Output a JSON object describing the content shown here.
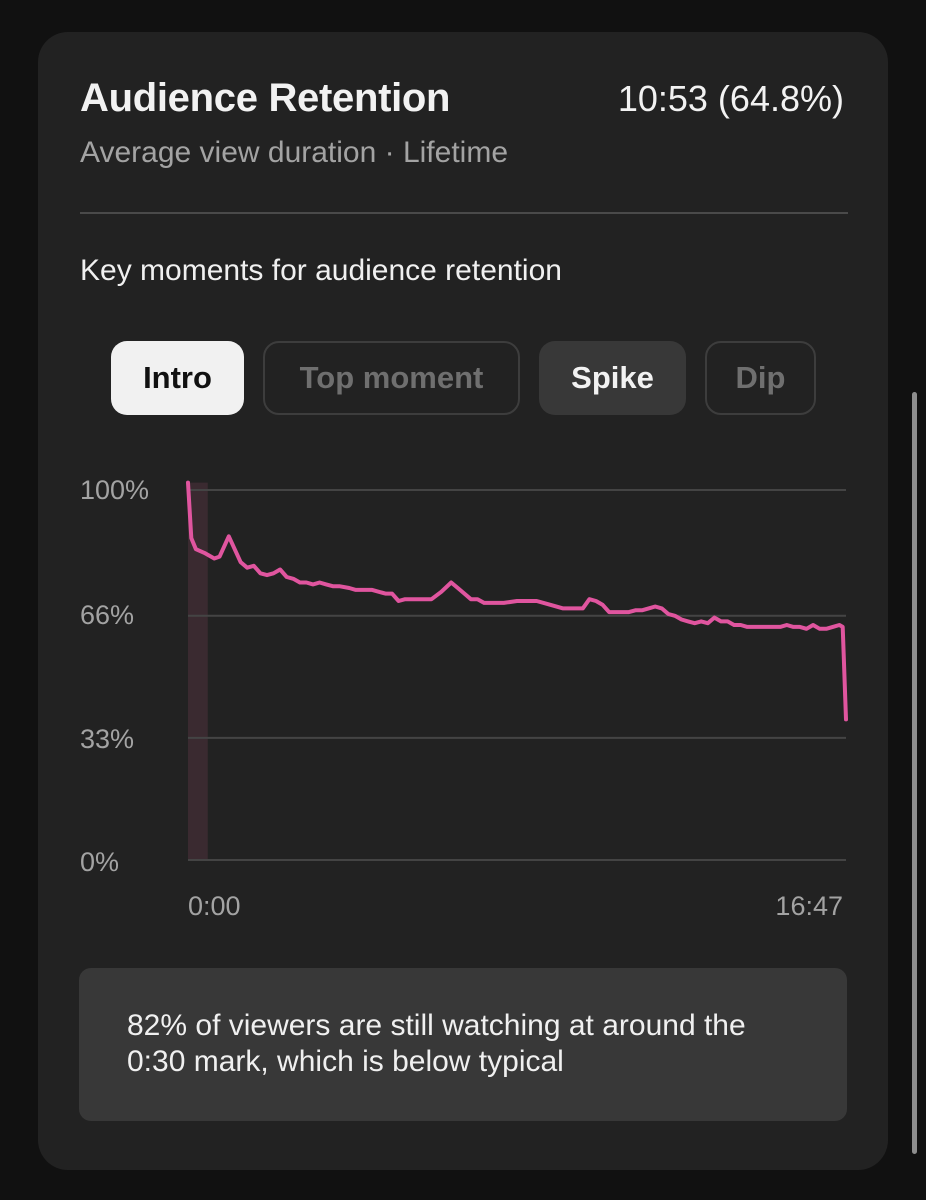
{
  "card": {
    "title": "Audience Retention",
    "summary_value": "10:53 (64.8%)",
    "subtitle": "Average view duration · Lifetime"
  },
  "key_moments": {
    "heading": "Key moments for audience retention",
    "chips": [
      {
        "label": "Intro",
        "state": "selected"
      },
      {
        "label": "Top moment",
        "state": "disabled"
      },
      {
        "label": "Spike",
        "state": "default"
      },
      {
        "label": "Dip",
        "state": "disabled"
      }
    ]
  },
  "chart_data": {
    "type": "line",
    "y_ticks": [
      "100%",
      "66%",
      "33%",
      "0%"
    ],
    "ylim": [
      0,
      100
    ],
    "x_tick_labels": [
      "0:00",
      "16:47"
    ],
    "x_unit": "fraction of video length",
    "highlight": {
      "label": "Intro",
      "x_range": [
        0,
        0.03
      ]
    },
    "line_color": "#e0559f",
    "highlight_color": "#3a2a30",
    "grid": true,
    "series": [
      {
        "values": [
          [
            0.0,
            102
          ],
          [
            0.005,
            87
          ],
          [
            0.012,
            84
          ],
          [
            0.025,
            83
          ],
          [
            0.04,
            81.5
          ],
          [
            0.048,
            82
          ],
          [
            0.062,
            87.5
          ],
          [
            0.08,
            80.5
          ],
          [
            0.09,
            79
          ],
          [
            0.1,
            79.5
          ],
          [
            0.11,
            77.5
          ],
          [
            0.12,
            77
          ],
          [
            0.13,
            77.5
          ],
          [
            0.14,
            78.5
          ],
          [
            0.15,
            76.5
          ],
          [
            0.16,
            76
          ],
          [
            0.17,
            75
          ],
          [
            0.18,
            75
          ],
          [
            0.19,
            74.5
          ],
          [
            0.2,
            75
          ],
          [
            0.21,
            74.5
          ],
          [
            0.22,
            74
          ],
          [
            0.23,
            74
          ],
          [
            0.245,
            73.5
          ],
          [
            0.255,
            73
          ],
          [
            0.27,
            73
          ],
          [
            0.28,
            73
          ],
          [
            0.3,
            72
          ],
          [
            0.31,
            72
          ],
          [
            0.32,
            70
          ],
          [
            0.33,
            70.5
          ],
          [
            0.34,
            70.5
          ],
          [
            0.355,
            70.5
          ],
          [
            0.37,
            70.5
          ],
          [
            0.385,
            72.5
          ],
          [
            0.4,
            75
          ],
          [
            0.41,
            73.5
          ],
          [
            0.42,
            72
          ],
          [
            0.43,
            70.5
          ],
          [
            0.44,
            70.5
          ],
          [
            0.45,
            69.5
          ],
          [
            0.46,
            69.5
          ],
          [
            0.48,
            69.5
          ],
          [
            0.5,
            70
          ],
          [
            0.52,
            70
          ],
          [
            0.53,
            70
          ],
          [
            0.55,
            69
          ],
          [
            0.57,
            68
          ],
          [
            0.59,
            68
          ],
          [
            0.6,
            68
          ],
          [
            0.61,
            70.5
          ],
          [
            0.62,
            70
          ],
          [
            0.63,
            69
          ],
          [
            0.64,
            67
          ],
          [
            0.66,
            67
          ],
          [
            0.67,
            67
          ],
          [
            0.68,
            67.5
          ],
          [
            0.69,
            67.5
          ],
          [
            0.7,
            68
          ],
          [
            0.71,
            68.5
          ],
          [
            0.72,
            68
          ],
          [
            0.73,
            66.5
          ],
          [
            0.74,
            66
          ],
          [
            0.75,
            65
          ],
          [
            0.76,
            64.5
          ],
          [
            0.77,
            64
          ],
          [
            0.78,
            64.5
          ],
          [
            0.79,
            64
          ],
          [
            0.8,
            65.5
          ],
          [
            0.81,
            64.5
          ],
          [
            0.82,
            64.5
          ],
          [
            0.83,
            63.5
          ],
          [
            0.84,
            63.5
          ],
          [
            0.85,
            63
          ],
          [
            0.86,
            63
          ],
          [
            0.87,
            63
          ],
          [
            0.88,
            63
          ],
          [
            0.89,
            63
          ],
          [
            0.9,
            63
          ],
          [
            0.91,
            63.5
          ],
          [
            0.92,
            63
          ],
          [
            0.93,
            63
          ],
          [
            0.94,
            62.5
          ],
          [
            0.95,
            63.5
          ],
          [
            0.96,
            62.5
          ],
          [
            0.97,
            62.5
          ],
          [
            0.98,
            63
          ],
          [
            0.99,
            63.5
          ],
          [
            0.995,
            63
          ],
          [
            1.0,
            38
          ]
        ]
      }
    ]
  },
  "insight": {
    "text": "82% of viewers are still watching at around the 0:30 mark, which is below typical"
  }
}
